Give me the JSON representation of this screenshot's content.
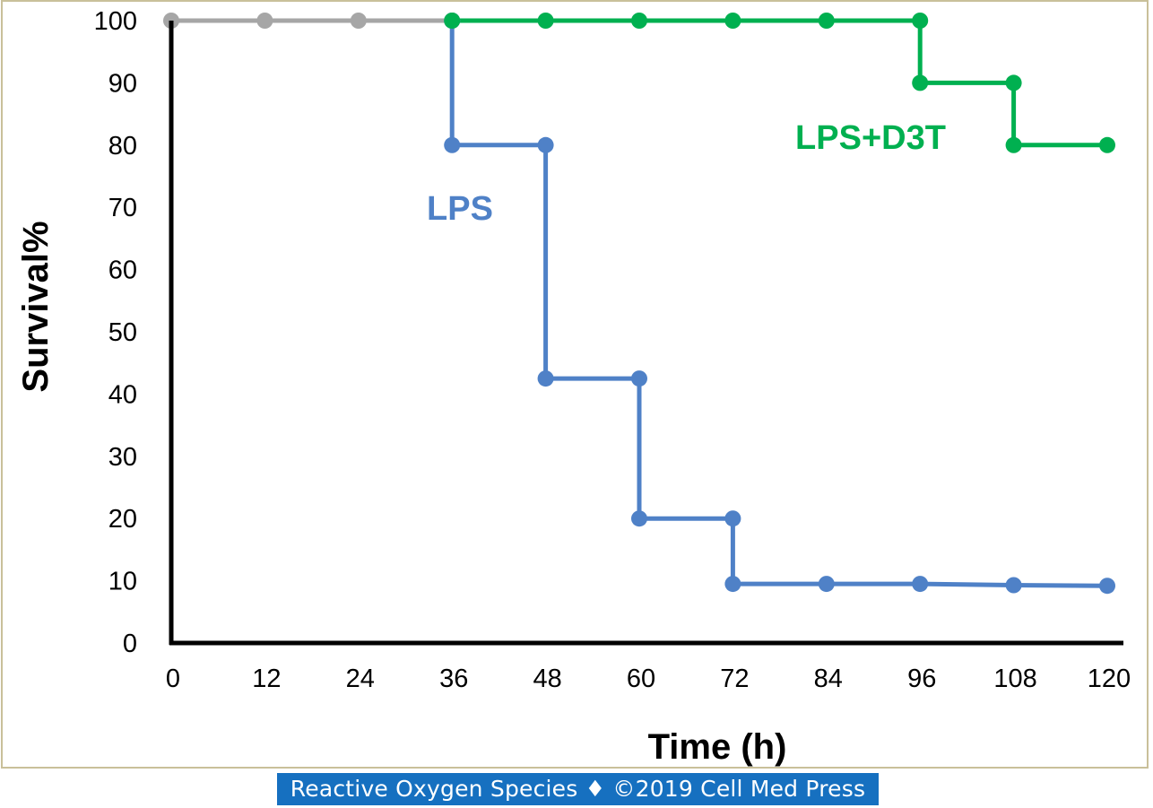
{
  "chart_data": {
    "type": "line",
    "title": "",
    "xlabel": "Time (h)",
    "ylabel": "Survival%",
    "xlim": [
      0,
      120
    ],
    "ylim": [
      0,
      100
    ],
    "x_ticks": [
      0,
      12,
      24,
      36,
      48,
      60,
      72,
      84,
      96,
      108,
      120
    ],
    "y_ticks": [
      0,
      10,
      20,
      30,
      40,
      50,
      60,
      70,
      80,
      90,
      100
    ],
    "step": true,
    "grid": false,
    "legend": "none",
    "series": [
      {
        "color": "#a6a6a6",
        "points": [
          [
            0,
            100
          ],
          [
            12,
            100
          ],
          [
            24,
            100
          ],
          [
            36,
            100
          ]
        ]
      },
      {
        "name": "LPS",
        "color": "#4f81c7",
        "points": [
          [
            36,
            100
          ],
          [
            36,
            80
          ],
          [
            48,
            80
          ],
          [
            48,
            42.5
          ],
          [
            60,
            42.5
          ],
          [
            60,
            20
          ],
          [
            72,
            20
          ],
          [
            72,
            9.5
          ],
          [
            84,
            9.5
          ],
          [
            96,
            9.5
          ],
          [
            108,
            9.3
          ],
          [
            120,
            9.2
          ]
        ]
      },
      {
        "name": "LPS+D3T",
        "color": "#00b050",
        "points": [
          [
            36,
            100
          ],
          [
            48,
            100
          ],
          [
            60,
            100
          ],
          [
            72,
            100
          ],
          [
            84,
            100
          ],
          [
            96,
            100
          ],
          [
            96,
            90
          ],
          [
            108,
            90
          ],
          [
            108,
            80
          ],
          [
            120,
            80
          ]
        ]
      }
    ]
  },
  "caption": "Reactive Oxygen Species ♦ ©2019 Cell Med Press"
}
